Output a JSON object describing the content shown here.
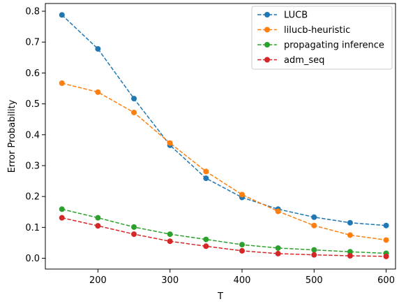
{
  "chart_data": {
    "type": "line",
    "title": "",
    "xlabel": "T",
    "ylabel": "Error Probability",
    "xlim": [
      127,
      613
    ],
    "ylim": [
      -0.035,
      0.825
    ],
    "xticks": [
      "200",
      "300",
      "400",
      "500",
      "600"
    ],
    "yticks": [
      "0.0",
      "0.1",
      "0.2",
      "0.3",
      "0.4",
      "0.5",
      "0.6",
      "0.7",
      "0.8"
    ],
    "grid": false,
    "legend_position": "top-right",
    "line_style": "dashed",
    "marker": "circle",
    "x": [
      150,
      200,
      250,
      300,
      350,
      400,
      450,
      500,
      550,
      600
    ],
    "series": [
      {
        "name": "LUCB",
        "color": "#1f77b4",
        "values": [
          0.788,
          0.678,
          0.517,
          0.366,
          0.259,
          0.197,
          0.159,
          0.133,
          0.115,
          0.106
        ]
      },
      {
        "name": "lilucb-heuristic",
        "color": "#ff7f0e",
        "values": [
          0.567,
          0.538,
          0.472,
          0.373,
          0.281,
          0.206,
          0.152,
          0.106,
          0.075,
          0.059
        ]
      },
      {
        "name": "propagating inference",
        "color": "#2ca02c",
        "values": [
          0.159,
          0.131,
          0.101,
          0.078,
          0.061,
          0.044,
          0.033,
          0.027,
          0.021,
          0.016
        ]
      },
      {
        "name": "adm_seq",
        "color": "#d62728",
        "values": [
          0.131,
          0.105,
          0.078,
          0.055,
          0.039,
          0.024,
          0.015,
          0.011,
          0.008,
          0.006
        ]
      }
    ]
  }
}
